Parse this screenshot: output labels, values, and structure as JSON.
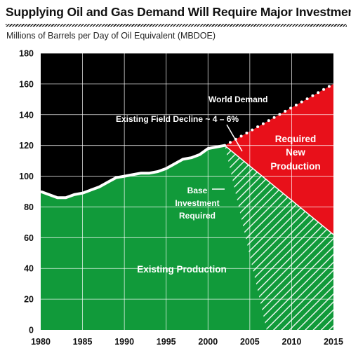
{
  "chart_data": {
    "type": "area",
    "title": "Supplying Oil and Gas Demand Will Require Major Investment",
    "subtitle": "Millions of Barrels per Day of Oil Equivalent (MBDOE)",
    "xlabel": "",
    "ylabel": "",
    "xlim": [
      1980,
      2015
    ],
    "ylim": [
      0,
      180
    ],
    "x_ticks": [
      1980,
      1985,
      1990,
      1995,
      2000,
      2005,
      2010,
      2015
    ],
    "y_ticks": [
      0,
      20,
      40,
      60,
      80,
      100,
      120,
      140,
      160,
      180
    ],
    "grid": true,
    "series": [
      {
        "name": "World Demand",
        "style": "white line, dotted after 2002",
        "points": [
          [
            1980,
            90
          ],
          [
            1981,
            88
          ],
          [
            1982,
            86
          ],
          [
            1983,
            86
          ],
          [
            1984,
            88
          ],
          [
            1985,
            89
          ],
          [
            1986,
            91
          ],
          [
            1987,
            93
          ],
          [
            1988,
            96
          ],
          [
            1989,
            99
          ],
          [
            1990,
            100
          ],
          [
            1991,
            101
          ],
          [
            1992,
            102
          ],
          [
            1993,
            102
          ],
          [
            1994,
            103
          ],
          [
            1995,
            105
          ],
          [
            1996,
            108
          ],
          [
            1997,
            111
          ],
          [
            1998,
            112
          ],
          [
            1999,
            114
          ],
          [
            2000,
            118
          ],
          [
            2001,
            119
          ],
          [
            2002,
            120
          ],
          [
            2015,
            160
          ]
        ]
      },
      {
        "name": "Existing Production",
        "points": [
          [
            1980,
            90
          ],
          [
            1981,
            88
          ],
          [
            1982,
            86
          ],
          [
            1983,
            86
          ],
          [
            1984,
            88
          ],
          [
            1985,
            89
          ],
          [
            1986,
            91
          ],
          [
            1987,
            93
          ],
          [
            1988,
            96
          ],
          [
            1989,
            99
          ],
          [
            1990,
            100
          ],
          [
            1991,
            101
          ],
          [
            1992,
            102
          ],
          [
            1993,
            102
          ],
          [
            1994,
            103
          ],
          [
            1995,
            105
          ],
          [
            1996,
            108
          ],
          [
            1997,
            111
          ],
          [
            1998,
            112
          ],
          [
            1999,
            114
          ],
          [
            2000,
            118
          ],
          [
            2001,
            119
          ],
          [
            2002,
            120
          ],
          [
            2015,
            62
          ]
        ]
      }
    ],
    "annotations": [
      "World Demand",
      "Existing Field Decline ~ 4 – 6%",
      "Required New Production",
      "Base Investment Required",
      "Existing Production"
    ],
    "colors": {
      "background": "#000000",
      "existing_production": "#119a3a",
      "required_new_production": "#e8101a",
      "line": "#ffffff",
      "grid": "#ffffff"
    }
  },
  "labels": {
    "world_demand": "World Demand",
    "field_decline": "Existing Field Decline ~ 4 – 6%",
    "required_new_1": "Required",
    "required_new_2": "New",
    "required_new_3": "Production",
    "base_investment_1": "Base",
    "base_investment_2": "Investment",
    "base_investment_3": "Required",
    "existing_production": "Existing Production"
  }
}
